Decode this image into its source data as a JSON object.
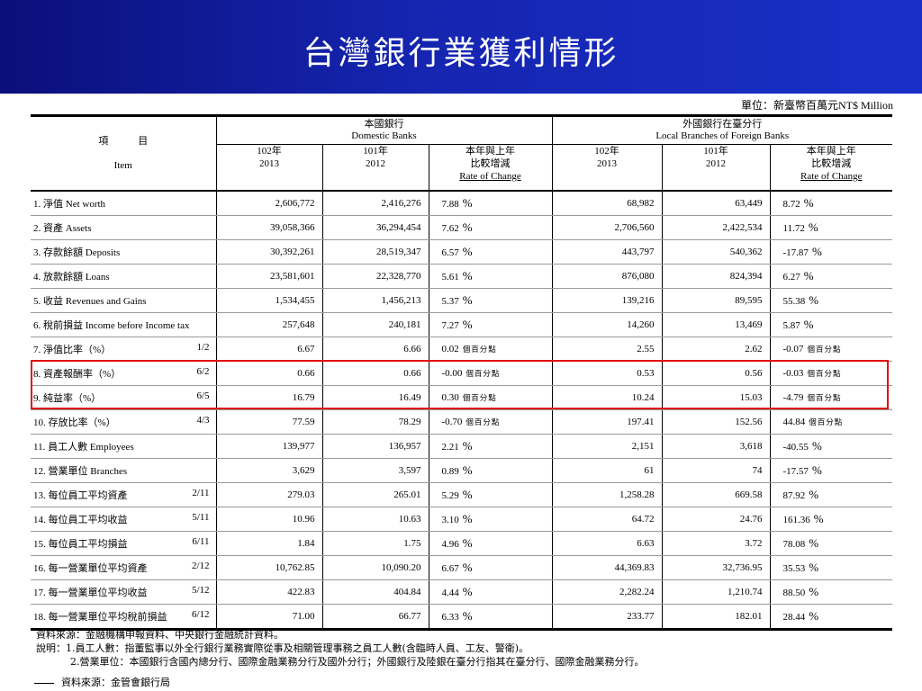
{
  "title": "台灣銀行業獲利情形",
  "unit": "單位：新臺幣百萬元NT$ Million",
  "header": {
    "item_zh": "項　　　目",
    "item_en": "Item",
    "domestic_zh": "本國銀行",
    "domestic_en": "Domestic Banks",
    "foreign_zh": "外國銀行在臺分行",
    "foreign_en": "Local Branches of Foreign Banks",
    "y2013_zh": "102年",
    "y2013": "2013",
    "y2012_zh": "101年",
    "y2012": "2012",
    "change_zh1": "本年與上年",
    "change_zh2": "比較增減",
    "change_en": "Rate of Change"
  },
  "rows": [
    {
      "item": "1. 淨值  Net worth",
      "ratio": "",
      "d13": "2,606,772",
      "d12": "2,416,276",
      "dch": "7.88",
      "du": "%",
      "f13": "68,982",
      "f12": "63,449",
      "fch": "8.72",
      "fu": "%"
    },
    {
      "item": "2. 資產  Assets",
      "ratio": "",
      "d13": "39,058,366",
      "d12": "36,294,454",
      "dch": "7.62",
      "du": "%",
      "f13": "2,706,560",
      "f12": "2,422,534",
      "fch": "11.72",
      "fu": "%"
    },
    {
      "item": "3. 存款餘額  Deposits",
      "ratio": "",
      "d13": "30,392,261",
      "d12": "28,519,347",
      "dch": "6.57",
      "du": "%",
      "f13": "443,797",
      "f12": "540,362",
      "fch": "-17.87",
      "fu": "%"
    },
    {
      "item": "4. 放款餘額  Loans",
      "ratio": "",
      "d13": "23,581,601",
      "d12": "22,328,770",
      "dch": "5.61",
      "du": "%",
      "f13": "876,080",
      "f12": "824,394",
      "fch": "6.27",
      "fu": "%"
    },
    {
      "item": "5. 收益  Revenues and Gains",
      "ratio": "",
      "d13": "1,534,455",
      "d12": "1,456,213",
      "dch": "5.37",
      "du": "%",
      "f13": "139,216",
      "f12": "89,595",
      "fch": "55.38",
      "fu": "%"
    },
    {
      "item": "6. 稅前損益  Income before Income tax",
      "ratio": "",
      "d13": "257,648",
      "d12": "240,181",
      "dch": "7.27",
      "du": "%",
      "f13": "14,260",
      "f12": "13,469",
      "fch": "5.87",
      "fu": "%"
    },
    {
      "item": "7. 淨值比率（%）",
      "ratio": "1/2",
      "d13": "6.67",
      "d12": "6.66",
      "dch": "0.02",
      "du": "個百分點",
      "f13": "2.55",
      "f12": "2.62",
      "fch": "-0.07",
      "fu": "個百分點"
    },
    {
      "item": "8. 資產報酬率（%）",
      "ratio": "6/2",
      "d13": "0.66",
      "d12": "0.66",
      "dch": "-0.00",
      "du": "個百分點",
      "f13": "0.53",
      "f12": "0.56",
      "fch": "-0.03",
      "fu": "個百分點"
    },
    {
      "item": "9. 純益率（%）",
      "ratio": "6/5",
      "d13": "16.79",
      "d12": "16.49",
      "dch": "0.30",
      "du": "個百分點",
      "f13": "10.24",
      "f12": "15.03",
      "fch": "-4.79",
      "fu": "個百分點"
    },
    {
      "item": "10. 存放比率（%）",
      "ratio": "4/3",
      "d13": "77.59",
      "d12": "78.29",
      "dch": "-0.70",
      "du": "個百分點",
      "f13": "197.41",
      "f12": "152.56",
      "fch": "44.84",
      "fu": "個百分點"
    },
    {
      "item": "11. 員工人數 Employees",
      "ratio": "",
      "d13": "139,977",
      "d12": "136,957",
      "dch": "2.21",
      "du": "%",
      "f13": "2,151",
      "f12": "3,618",
      "fch": "-40.55",
      "fu": "%"
    },
    {
      "item": "12. 營業單位 Branches",
      "ratio": "",
      "d13": "3,629",
      "d12": "3,597",
      "dch": "0.89",
      "du": "%",
      "f13": "61",
      "f12": "74",
      "fch": "-17.57",
      "fu": "%"
    },
    {
      "item": "13. 每位員工平均資產",
      "ratio": "2/11",
      "d13": "279.03",
      "d12": "265.01",
      "dch": "5.29",
      "du": "%",
      "f13": "1,258.28",
      "f12": "669.58",
      "fch": "87.92",
      "fu": "%"
    },
    {
      "item": "14. 每位員工平均收益",
      "ratio": "5/11",
      "d13": "10.96",
      "d12": "10.63",
      "dch": "3.10",
      "du": "%",
      "f13": "64.72",
      "f12": "24.76",
      "fch": "161.36",
      "fu": "%"
    },
    {
      "item": "15. 每位員工平均損益",
      "ratio": "6/11",
      "d13": "1.84",
      "d12": "1.75",
      "dch": "4.96",
      "du": "%",
      "f13": "6.63",
      "f12": "3.72",
      "fch": "78.08",
      "fu": "%"
    },
    {
      "item": "16. 每一營業單位平均資產",
      "ratio": "2/12",
      "d13": "10,762.85",
      "d12": "10,090.20",
      "dch": "6.67",
      "du": "%",
      "f13": "44,369.83",
      "f12": "32,736.95",
      "fch": "35.53",
      "fu": "%"
    },
    {
      "item": "17. 每一營業單位平均收益",
      "ratio": "5/12",
      "d13": "422.83",
      "d12": "404.84",
      "dch": "4.44",
      "du": "%",
      "f13": "2,282.24",
      "f12": "1,210.74",
      "fch": "88.50",
      "fu": "%"
    },
    {
      "item": "18. 每一營業單位平均稅前損益",
      "ratio": "6/12",
      "d13": "71.00",
      "d12": "66.77",
      "dch": "6.33",
      "du": "%",
      "f13": "233.77",
      "f12": "182.01",
      "fch": "28.44",
      "fu": "%"
    }
  ],
  "notes": {
    "source1": "資料來源：金融機構申報資料、中央銀行金融統計資料。",
    "note1": "說明：1.員工人數：指董監事以外全行銀行業務實際從事及相關管理事務之員工人數(含臨時人員、工友、警衛)。",
    "note2": "2.營業單位：本國銀行含國內總分行、國際金融業務分行及國外分行；外國銀行及陸銀在臺分行指其在臺分行、國際金融業務分行。",
    "source2": "資料來源：金管會銀行局"
  },
  "highlight_color": "#e01010"
}
